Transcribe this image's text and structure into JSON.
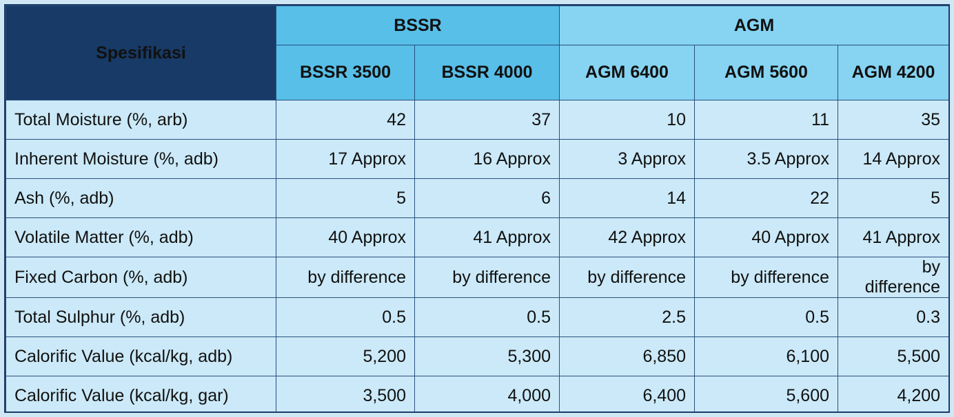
{
  "table": {
    "corner_label": "Spesifikasi",
    "groups": [
      {
        "label": "BSSR"
      },
      {
        "label": "AGM"
      }
    ],
    "columns": [
      "BSSR 3500",
      "BSSR 4000",
      "AGM 6400",
      "AGM 5600",
      "AGM 4200"
    ],
    "rows": [
      {
        "label": "Total Moisture (%, arb)",
        "values": [
          "42",
          "37",
          "10",
          "11",
          "35"
        ]
      },
      {
        "label": "Inherent Moisture (%, adb)",
        "values": [
          "17 Approx",
          "16 Approx",
          "3 Approx",
          "3.5 Approx",
          "14 Approx"
        ]
      },
      {
        "label": "Ash (%, adb)",
        "values": [
          "5",
          "6",
          "14",
          "22",
          "5"
        ]
      },
      {
        "label": "Volatile Matter (%, adb)",
        "values": [
          "40 Approx",
          "41 Approx",
          "42 Approx",
          "40 Approx",
          "41 Approx"
        ]
      },
      {
        "label": "Fixed Carbon (%, adb)",
        "values": [
          "by difference",
          "by difference",
          "by difference",
          "by difference",
          "by difference"
        ]
      },
      {
        "label": "Total Sulphur (%, adb)",
        "values": [
          "0.5",
          "0.5",
          "2.5",
          "0.5",
          "0.3"
        ]
      },
      {
        "label": "Calorific Value (kcal/kg, adb)",
        "values": [
          "5,200",
          "5,300",
          "6,850",
          "6,100",
          "5,500"
        ]
      },
      {
        "label": "Calorific Value (kcal/kg, gar)",
        "values": [
          "3,500",
          "4,000",
          "6,400",
          "5,600",
          "4,200"
        ]
      }
    ]
  },
  "colors": {
    "corner_bg": "#173a66",
    "bssr_header": "#58bfe8",
    "agm_header": "#86d4f2",
    "body_bg": "#cbe9f8",
    "border": "#2a4f7f"
  }
}
